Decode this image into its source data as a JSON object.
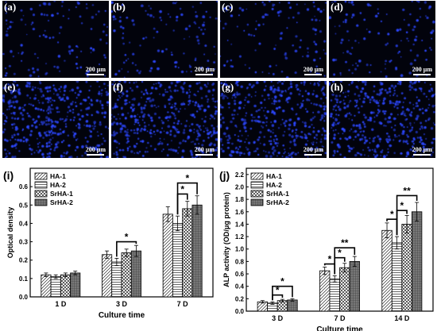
{
  "panels": [
    {
      "id": "a",
      "label": "(a)",
      "scale": "200 μm"
    },
    {
      "id": "b",
      "label": "(b)",
      "scale": "200 μm"
    },
    {
      "id": "c",
      "label": "(c)",
      "scale": "200 μm"
    },
    {
      "id": "d",
      "label": "(d)",
      "scale": "200 μm"
    },
    {
      "id": "e",
      "label": "(e)",
      "scale": "200 μm"
    },
    {
      "id": "f",
      "label": "(f)",
      "scale": "200 μm"
    },
    {
      "id": "g",
      "label": "(g)",
      "scale": "200 μm"
    },
    {
      "id": "h",
      "label": "(h)",
      "scale": "200 μm"
    }
  ],
  "colors": {
    "micrograph_bg": "#02030c",
    "nuclei": "#2d48ff",
    "bar_outline": "#000000",
    "bar_fill": "#ffffff",
    "dark_fill": "#555555"
  },
  "chart_data": [
    {
      "panel_label": "(i)",
      "type": "bar",
      "title": "",
      "xlabel": "Culture time",
      "ylabel": "Optical density",
      "categories": [
        "1 D",
        "3 D",
        "7 D"
      ],
      "ylim": [
        0,
        0.7
      ],
      "yticks": [
        "0.0",
        "0.1",
        "0.2",
        "0.3",
        "0.4",
        "0.5",
        "0.6"
      ],
      "legend_position": "top-left",
      "series": [
        {
          "name": "HA-1",
          "pattern": "hatch-diagonal",
          "values": [
            0.12,
            0.23,
            0.45
          ],
          "errors": [
            0.01,
            0.02,
            0.04
          ]
        },
        {
          "name": "HA-2",
          "pattern": "hatch-horizontal",
          "values": [
            0.11,
            0.19,
            0.4
          ],
          "errors": [
            0.01,
            0.02,
            0.04
          ]
        },
        {
          "name": "SrHA-1",
          "pattern": "crosshatch",
          "values": [
            0.12,
            0.24,
            0.48
          ],
          "errors": [
            0.01,
            0.02,
            0.04
          ]
        },
        {
          "name": "SrHA-2",
          "pattern": "dark-grid",
          "values": [
            0.13,
            0.25,
            0.5
          ],
          "errors": [
            0.01,
            0.03,
            0.05
          ]
        }
      ],
      "significance": [
        {
          "category": "3 D",
          "from": "HA-2",
          "to": "SrHA-2",
          "level": 0.3,
          "label": "*"
        },
        {
          "category": "7 D",
          "from": "HA-2",
          "to": "SrHA-1",
          "level": 0.56,
          "label": "*"
        },
        {
          "category": "7 D",
          "from": "HA-2",
          "to": "SrHA-2",
          "level": 0.62,
          "label": "*"
        }
      ]
    },
    {
      "panel_label": "(j)",
      "type": "bar",
      "title": "",
      "xlabel": "Culture time",
      "ylabel": "ALP activity (OD/μg protein)",
      "categories": [
        "3 D",
        "7 D",
        "14 D"
      ],
      "ylim": [
        0,
        2.3
      ],
      "yticks": [
        "0.0",
        "0.2",
        "0.4",
        "0.6",
        "0.8",
        "1.0",
        "1.2",
        "1.4",
        "1.6",
        "1.8",
        "2.0",
        "2.2"
      ],
      "legend_position": "top-left",
      "series": [
        {
          "name": "HA-1",
          "pattern": "hatch-diagonal",
          "values": [
            0.15,
            0.65,
            1.3
          ],
          "errors": [
            0.02,
            0.06,
            0.12
          ]
        },
        {
          "name": "HA-2",
          "pattern": "hatch-horizontal",
          "values": [
            0.13,
            0.52,
            1.1
          ],
          "errors": [
            0.02,
            0.05,
            0.1
          ]
        },
        {
          "name": "SrHA-1",
          "pattern": "crosshatch",
          "values": [
            0.17,
            0.7,
            1.4
          ],
          "errors": [
            0.02,
            0.07,
            0.14
          ]
        },
        {
          "name": "SrHA-2",
          "pattern": "dark-grid",
          "values": [
            0.18,
            0.8,
            1.6
          ],
          "errors": [
            0.02,
            0.08,
            0.15
          ]
        }
      ],
      "significance": [
        {
          "category": "3 D",
          "from": "HA-2",
          "to": "SrHA-1",
          "level": 0.26,
          "label": "*"
        },
        {
          "category": "3 D",
          "from": "HA-2",
          "to": "SrHA-2",
          "level": 0.4,
          "label": "*"
        },
        {
          "category": "7 D",
          "from": "HA-1",
          "to": "HA-2",
          "level": 0.76,
          "label": "*"
        },
        {
          "category": "7 D",
          "from": "HA-2",
          "to": "SrHA-1",
          "level": 0.86,
          "label": "*"
        },
        {
          "category": "7 D",
          "from": "HA-2",
          "to": "SrHA-2",
          "level": 1.02,
          "label": "**"
        },
        {
          "category": "14 D",
          "from": "HA-1",
          "to": "HA-2",
          "level": 1.48,
          "label": "*"
        },
        {
          "category": "14 D",
          "from": "HA-2",
          "to": "SrHA-1",
          "level": 1.62,
          "label": "*"
        },
        {
          "category": "14 D",
          "from": "HA-2",
          "to": "SrHA-2",
          "level": 1.86,
          "label": "**"
        }
      ]
    }
  ]
}
